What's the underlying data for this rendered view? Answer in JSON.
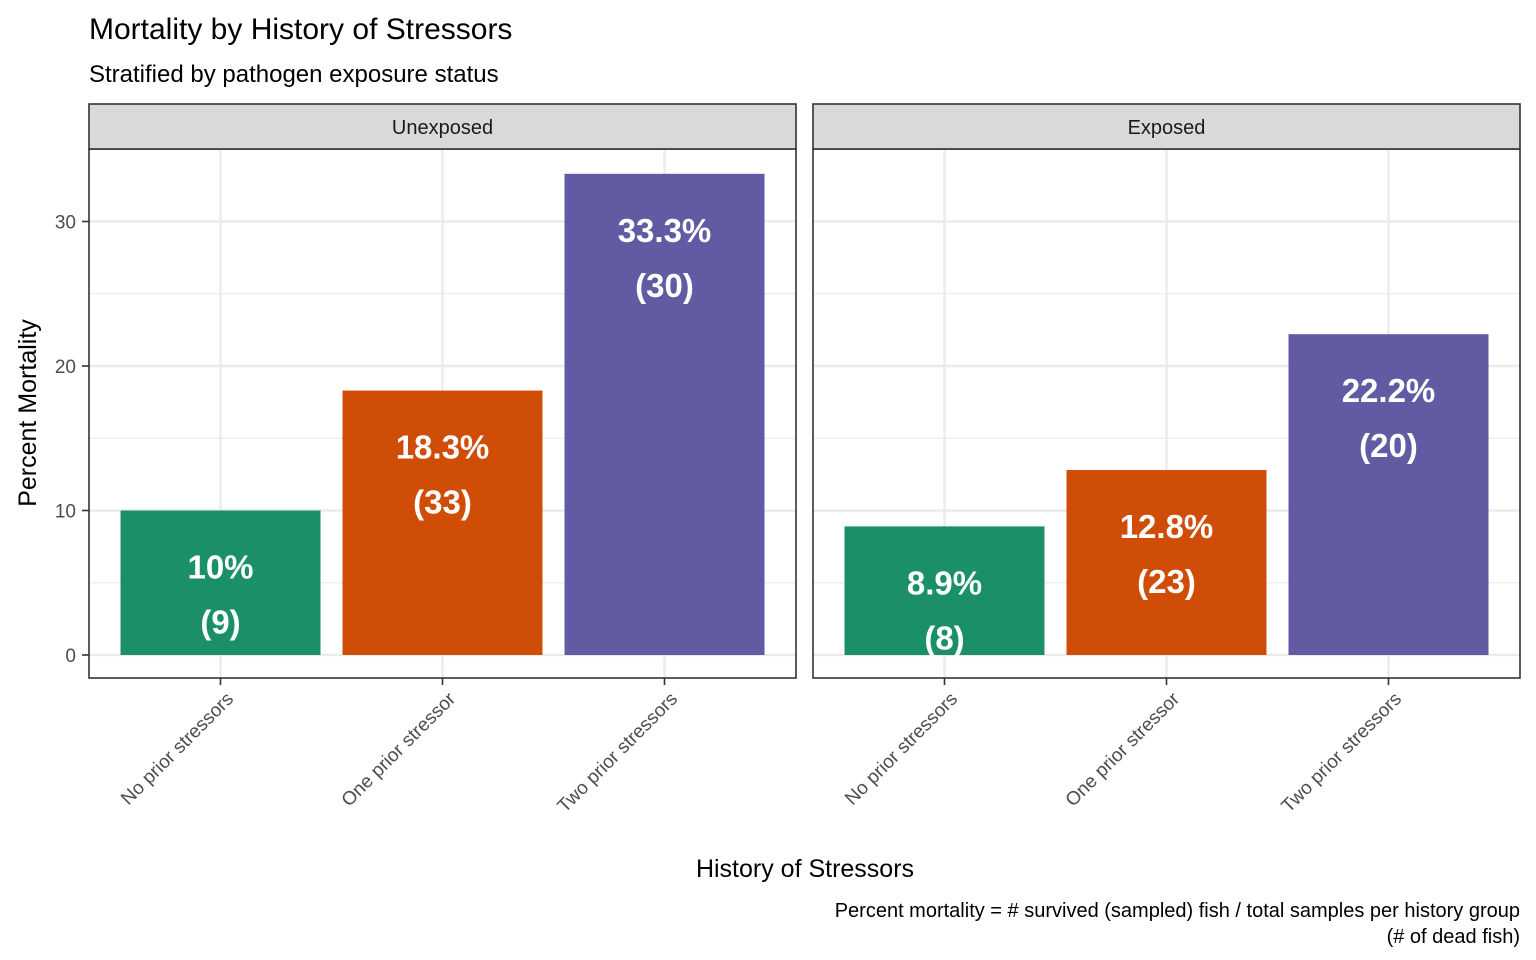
{
  "chart_data": {
    "type": "bar",
    "title": "Mortality by History of Stressors",
    "subtitle": "Stratified by pathogen exposure status",
    "xlabel": "History of Stressors",
    "ylabel": "Percent Mortality",
    "caption_lines": [
      "Percent mortality = # survived (sampled) fish / total samples per history group",
      "(# of dead fish)"
    ],
    "categories": [
      "No prior stressors",
      "One prior stressor",
      "Two prior stressors"
    ],
    "colors": [
      "#1b9066",
      "#d04d08",
      "#625ba4"
    ],
    "ylim": [
      0,
      35
    ],
    "yticks": [
      0,
      10,
      20,
      30
    ],
    "grid": true,
    "legend": "none",
    "facets": [
      {
        "name": "Unexposed",
        "values": [
          10,
          18.3,
          33.3
        ],
        "pct_labels": [
          "10%",
          "18.3%",
          "33.3%"
        ],
        "count_labels": [
          "(9)",
          "(33)",
          "(30)"
        ]
      },
      {
        "name": "Exposed",
        "values": [
          8.9,
          12.8,
          22.2
        ],
        "pct_labels": [
          "8.9%",
          "12.8%",
          "22.2%"
        ],
        "count_labels": [
          "(8)",
          "(23)",
          "(20)"
        ]
      }
    ]
  }
}
